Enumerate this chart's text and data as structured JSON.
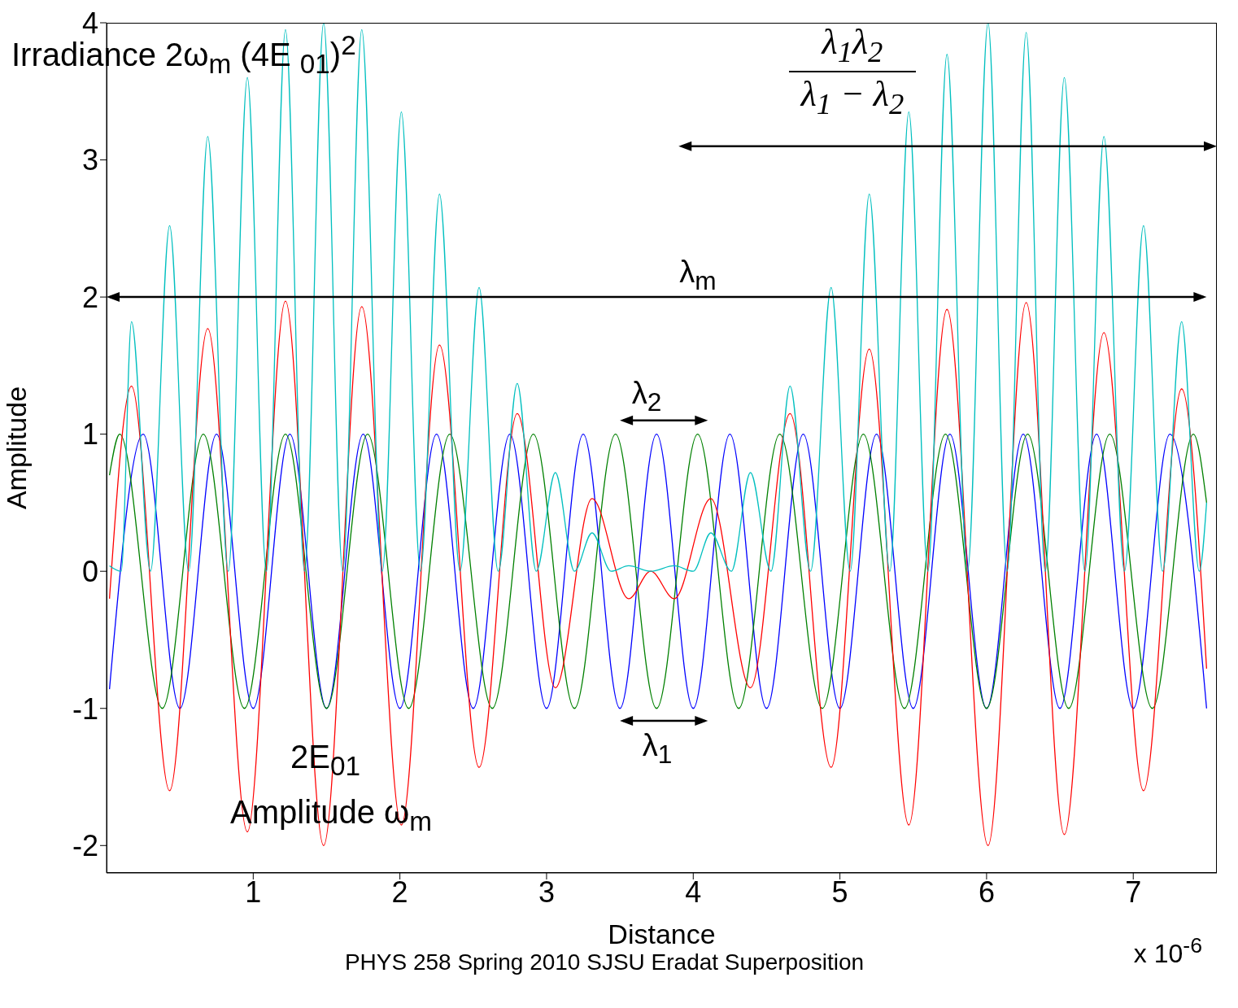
{
  "chart_data": {
    "type": "line",
    "xlabel": "Distance",
    "ylabel": "Amplitude",
    "xlim": [
      0,
      7.57
    ],
    "ylim": [
      -2.2,
      4
    ],
    "xticks": [
      1,
      2,
      3,
      4,
      5,
      6,
      7
    ],
    "yticks": [
      -2,
      -1,
      0,
      1,
      2,
      3,
      4
    ],
    "marker": "none",
    "line_style": "solid",
    "annotations": [
      "Irradiance 2ω$_{m}$  (4E $_{01}$)$^{2}$",
      "λ$_{1}$λ$_{2}$",
      "λ$_{1}$ − λ$_{2}$",
      "λ$_{m}$",
      "λ$_{2}$",
      "λ$_{1}$",
      "2E$_{01}$",
      "Amplitude ω$_{m}$",
      "PHYS 258 Spring 2010 SJSU Eradat Superposition",
      "x 10$^{-6}$"
    ],
    "series": [
      {
        "color": "#0000ff",
        "x": [
          0.02,
          0.25,
          0.5,
          0.75,
          1,
          1.25,
          1.5,
          1.75,
          2,
          2.25,
          2.5,
          2.75,
          3,
          3.25,
          3.5,
          3.75,
          4,
          4.25,
          4.5,
          4.75,
          5,
          5.25,
          5.5,
          5.75,
          6,
          6.25,
          6.5,
          6.75,
          7,
          7.25,
          7.5
        ],
        "values": [
          -0.86,
          1,
          -1,
          1,
          -1,
          1,
          -1,
          1,
          -1,
          1,
          -1,
          1,
          -1,
          1,
          -1,
          1,
          -1,
          1,
          -1,
          1,
          -1,
          1,
          -1,
          1,
          -1,
          1,
          -1,
          1,
          -1,
          1,
          -1
        ]
      },
      {
        "color": "#008000",
        "x": [
          0.02,
          0.09,
          0.38,
          0.66,
          0.94,
          1.22,
          1.5,
          1.78,
          2.06,
          2.34,
          2.63,
          2.91,
          3.19,
          3.47,
          3.75,
          4.03,
          4.31,
          4.59,
          4.88,
          5.16,
          5.44,
          5.72,
          6,
          6.28,
          6.56,
          6.84,
          7.13,
          7.41,
          7.5
        ],
        "values": [
          0.7,
          1,
          -1,
          1,
          -1,
          1,
          -1,
          1,
          -1,
          1,
          -1,
          1,
          -1,
          1,
          -1,
          1,
          -1,
          1,
          -1,
          1,
          -1,
          1,
          -1,
          1,
          -1,
          1,
          -1,
          1,
          0.5
        ]
      },
      {
        "color": "#ff0000",
        "x": [
          0.02,
          0.17,
          0.43,
          0.69,
          0.96,
          1.22,
          1.48,
          1.74,
          2.01,
          2.27,
          2.54,
          2.8,
          3.06,
          3.31,
          3.56,
          3.71,
          3.87,
          4.12,
          4.39,
          4.66,
          4.94,
          5.2,
          5.47,
          5.73,
          6.01,
          6.27,
          6.53,
          6.8,
          7.07,
          7.33,
          7.5
        ],
        "values": [
          -0.2,
          1.35,
          -1.6,
          1.77,
          -1.9,
          1.97,
          -2,
          1.93,
          -1.85,
          1.65,
          -1.43,
          1.15,
          -0.85,
          0.53,
          -0.2,
          0,
          -0.2,
          0.53,
          -0.85,
          1.15,
          -1.43,
          1.62,
          -1.85,
          1.91,
          -2,
          1.96,
          -1.92,
          1.74,
          -1.6,
          1.33,
          -0.71
        ]
      },
      {
        "color": "#00bfbf",
        "x": [
          0.02,
          0.1,
          0.17,
          0.3,
          0.43,
          0.56,
          0.69,
          0.83,
          0.96,
          1.09,
          1.22,
          1.35,
          1.48,
          1.61,
          1.74,
          1.88,
          2.01,
          2.14,
          2.27,
          2.41,
          2.54,
          2.67,
          2.8,
          2.93,
          3.06,
          3.19,
          3.31,
          3.44,
          3.56,
          3.71,
          3.87,
          4,
          4.12,
          4.26,
          4.39,
          4.53,
          4.66,
          4.8,
          4.94,
          5.07,
          5.2,
          5.34,
          5.47,
          5.6,
          5.73,
          5.87,
          6.01,
          6.14,
          6.27,
          6.4,
          6.53,
          6.67,
          6.8,
          6.94,
          7.07,
          7.2,
          7.33,
          7.45,
          7.5
        ],
        "values": [
          0.04,
          0,
          1.82,
          0,
          2.52,
          0,
          3.17,
          0,
          3.6,
          0,
          3.95,
          0,
          4,
          0,
          3.95,
          0,
          3.35,
          0,
          2.75,
          0,
          2.07,
          0,
          1.37,
          0,
          0.72,
          0,
          0.28,
          0,
          0.04,
          0,
          0.04,
          0,
          0.28,
          0,
          0.72,
          0,
          1.35,
          0,
          2.07,
          0,
          2.75,
          0,
          3.35,
          0,
          3.77,
          0,
          4,
          0,
          3.93,
          0,
          3.6,
          0,
          3.17,
          0,
          2.52,
          0,
          1.82,
          0,
          0.5
        ]
      }
    ]
  }
}
